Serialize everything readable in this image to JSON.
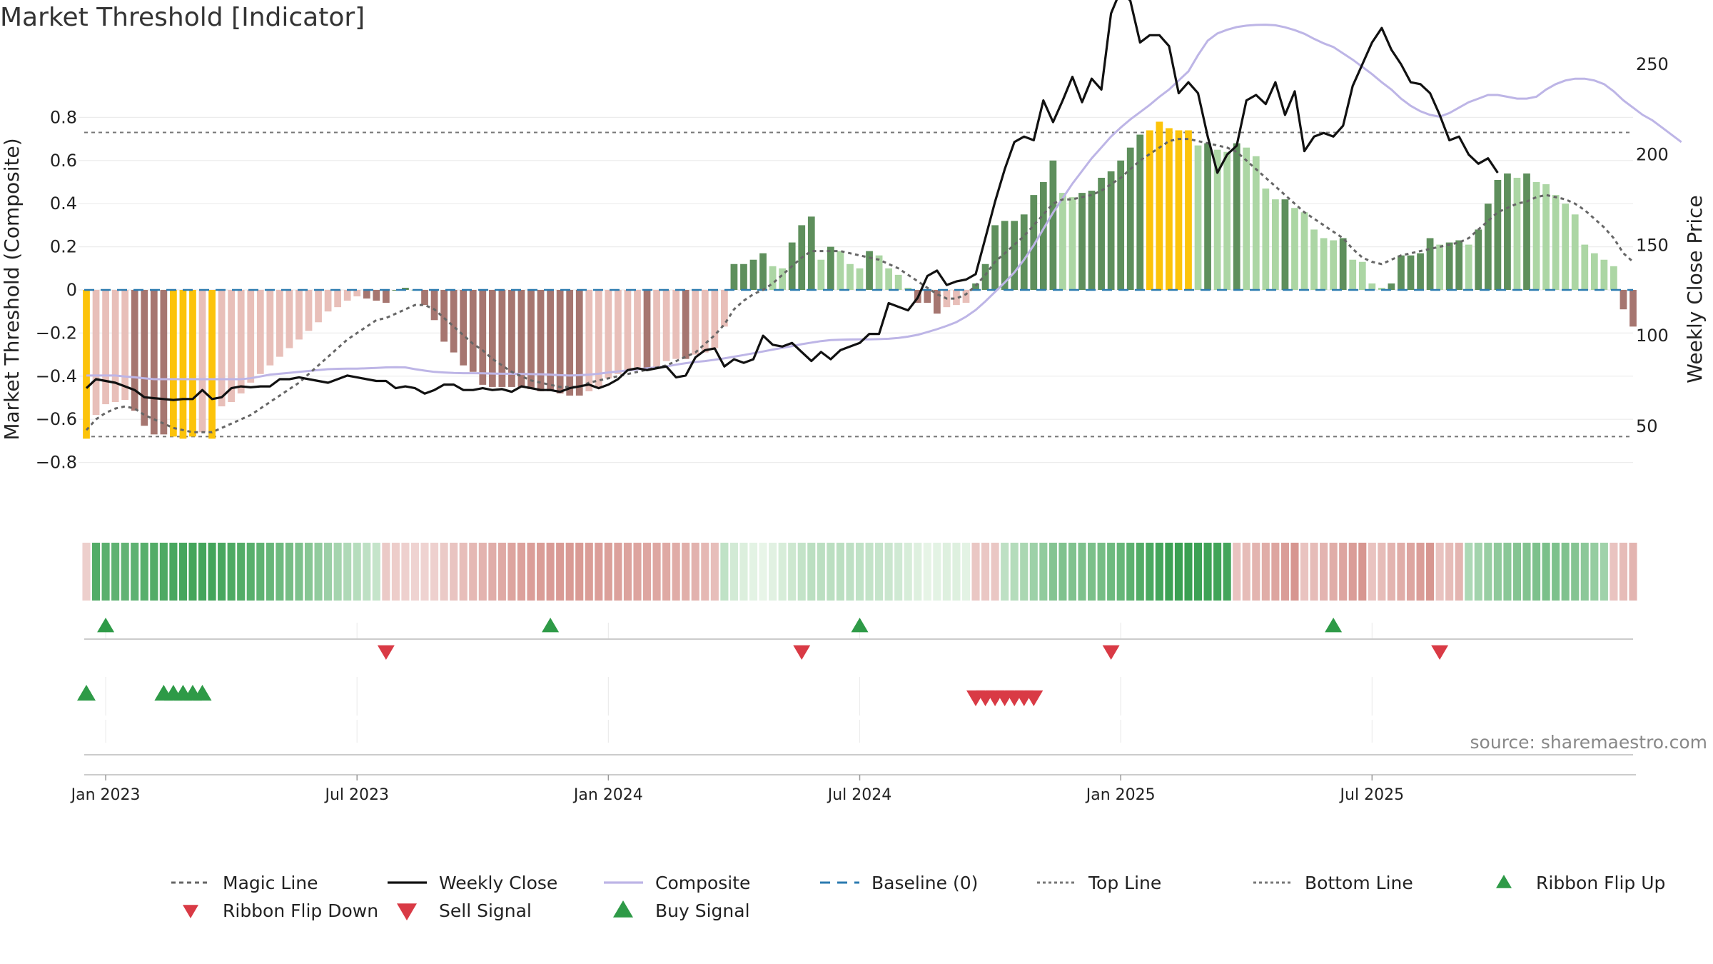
{
  "title": "Market Threshold [Indicator]",
  "source": "source: sharemaestro.com",
  "colors": {
    "bar_neg_light": "#e8bfb9",
    "bar_neg_dark": "#a67670",
    "bar_pos_light": "#acd6a4",
    "bar_pos_dark": "#5e8f5c",
    "bar_extreme": "#fcc30a",
    "magic": "#666666",
    "close": "#111111",
    "composite": "#bdb5e6",
    "baseline": "#2b7bb0",
    "guide": "#777777",
    "buy": "#2e9a47",
    "sell": "#d93a45"
  },
  "chart_data": {
    "type": "bar",
    "title": "Market Threshold [Indicator]",
    "ylabel": "Market Threshold (Composite)",
    "ylabel_right": "Weekly Close Price",
    "ylim": [
      -0.85,
      0.85
    ],
    "ylim_right": [
      50,
      300
    ],
    "yticks": [
      0.8,
      0.6,
      0.4,
      0.2,
      0,
      -0.2,
      -0.4,
      -0.6,
      -0.8
    ],
    "ytick_labels": [
      "0.8",
      "0.6",
      "0.4",
      "0.2",
      "0",
      "−0.2",
      "−0.4",
      "−0.6",
      "−0.8"
    ],
    "yticks_right": [
      300,
      250,
      200,
      150,
      100,
      50
    ],
    "ytick_right_labels": [
      "300",
      "250",
      "200",
      "150",
      "100",
      "50"
    ],
    "x_start": "2022-12-19",
    "x_step_days": 7,
    "xticks": [
      "Jan 2023",
      "Jul 2023",
      "Jan 2024",
      "Jul 2024",
      "Jan 2025",
      "Jul 2025"
    ],
    "top_line": 0.73,
    "bottom_line": -0.68,
    "composite_bars": [
      -0.69,
      -0.58,
      -0.53,
      -0.52,
      -0.51,
      -0.56,
      -0.63,
      -0.67,
      -0.67,
      -0.68,
      -0.69,
      -0.68,
      -0.66,
      -0.69,
      -0.54,
      -0.52,
      -0.48,
      -0.43,
      -0.39,
      -0.35,
      -0.31,
      -0.27,
      -0.23,
      -0.19,
      -0.15,
      -0.1,
      -0.08,
      -0.05,
      -0.03,
      -0.04,
      -0.05,
      -0.06,
      0.0,
      0.01,
      0.0,
      -0.07,
      -0.14,
      -0.24,
      -0.29,
      -0.35,
      -0.38,
      -0.44,
      -0.45,
      -0.45,
      -0.45,
      -0.45,
      -0.46,
      -0.47,
      -0.47,
      -0.48,
      -0.49,
      -0.49,
      -0.47,
      -0.45,
      -0.41,
      -0.39,
      -0.37,
      -0.36,
      -0.37,
      -0.36,
      -0.33,
      -0.32,
      -0.32,
      -0.3,
      -0.29,
      -0.27,
      -0.17,
      0.12,
      0.12,
      0.14,
      0.17,
      0.11,
      0.1,
      0.22,
      0.3,
      0.34,
      0.14,
      0.2,
      0.18,
      0.12,
      0.1,
      0.18,
      0.16,
      0.1,
      0.07,
      0.01,
      -0.06,
      -0.06,
      -0.11,
      -0.08,
      -0.07,
      -0.06,
      0.03,
      0.12,
      0.3,
      0.32,
      0.32,
      0.35,
      0.44,
      0.5,
      0.6,
      0.45,
      0.43,
      0.45,
      0.46,
      0.52,
      0.55,
      0.6,
      0.66,
      0.72,
      0.74,
      0.78,
      0.75,
      0.74,
      0.74,
      0.67,
      0.68,
      0.65,
      0.64,
      0.68,
      0.66,
      0.62,
      0.47,
      0.42,
      0.42,
      0.38,
      0.36,
      0.28,
      0.24,
      0.23,
      0.24,
      0.14,
      0.13,
      0.03,
      0.01,
      0.03,
      0.16,
      0.16,
      0.17,
      0.24,
      0.21,
      0.22,
      0.23,
      0.21,
      0.28,
      0.4,
      0.51,
      0.54,
      0.52,
      0.54,
      0.5,
      0.49,
      0.44,
      0.4,
      0.35,
      0.21,
      0.17,
      0.14,
      0.11,
      -0.09,
      -0.17
    ],
    "magic_line": [
      -0.65,
      -0.6,
      -0.57,
      -0.55,
      -0.54,
      -0.55,
      -0.58,
      -0.6,
      -0.62,
      -0.64,
      -0.65,
      -0.66,
      -0.66,
      -0.66,
      -0.64,
      -0.62,
      -0.6,
      -0.58,
      -0.55,
      -0.52,
      -0.49,
      -0.46,
      -0.43,
      -0.39,
      -0.35,
      -0.31,
      -0.27,
      -0.23,
      -0.2,
      -0.17,
      -0.14,
      -0.13,
      -0.11,
      -0.09,
      -0.07,
      -0.07,
      -0.09,
      -0.13,
      -0.17,
      -0.21,
      -0.25,
      -0.28,
      -0.32,
      -0.35,
      -0.38,
      -0.4,
      -0.42,
      -0.43,
      -0.44,
      -0.45,
      -0.45,
      -0.45,
      -0.43,
      -0.42,
      -0.41,
      -0.4,
      -0.39,
      -0.38,
      -0.37,
      -0.36,
      -0.35,
      -0.33,
      -0.31,
      -0.29,
      -0.25,
      -0.21,
      -0.16,
      -0.09,
      -0.05,
      -0.02,
      0.0,
      0.03,
      0.07,
      0.11,
      0.15,
      0.18,
      0.18,
      0.18,
      0.18,
      0.17,
      0.16,
      0.15,
      0.14,
      0.12,
      0.1,
      0.07,
      0.04,
      0.01,
      -0.02,
      -0.04,
      -0.04,
      -0.02,
      0.02,
      0.07,
      0.13,
      0.17,
      0.21,
      0.25,
      0.3,
      0.35,
      0.4,
      0.42,
      0.42,
      0.43,
      0.44,
      0.46,
      0.49,
      0.52,
      0.56,
      0.6,
      0.63,
      0.66,
      0.69,
      0.7,
      0.7,
      0.69,
      0.68,
      0.67,
      0.66,
      0.64,
      0.6,
      0.56,
      0.52,
      0.48,
      0.44,
      0.4,
      0.36,
      0.33,
      0.3,
      0.27,
      0.24,
      0.19,
      0.15,
      0.13,
      0.12,
      0.14,
      0.16,
      0.17,
      0.18,
      0.19,
      0.2,
      0.21,
      0.22,
      0.24,
      0.28,
      0.32,
      0.36,
      0.38,
      0.4,
      0.41,
      0.43,
      0.44,
      0.43,
      0.42,
      0.4,
      0.37,
      0.33,
      0.29,
      0.24,
      0.17,
      0.13
    ],
    "weekly_close": [
      71,
      76,
      75,
      74,
      72,
      70,
      66,
      65.5,
      65,
      64.5,
      65,
      65,
      70,
      65,
      66,
      71,
      72,
      71.5,
      72,
      72,
      76,
      76,
      77,
      76,
      75,
      74,
      76,
      78,
      77,
      76,
      75,
      75,
      71,
      72,
      71,
      68,
      70,
      73,
      73,
      70,
      70,
      71,
      70,
      70.5,
      69,
      72,
      71,
      70,
      70,
      69,
      71,
      72,
      73,
      71,
      73,
      76,
      81,
      82,
      81,
      82,
      83,
      77,
      78,
      88,
      92,
      93,
      83,
      87,
      85,
      87,
      100,
      95,
      94,
      96,
      91,
      86,
      91,
      87,
      92,
      94,
      96,
      101,
      101,
      118,
      116,
      114,
      121,
      133,
      136,
      128,
      130,
      131,
      134,
      154,
      174,
      192,
      207,
      210,
      208,
      230,
      218,
      230,
      243,
      229,
      242,
      236,
      278,
      291,
      285,
      262,
      266,
      266,
      260,
      234,
      240,
      234,
      210,
      190,
      200,
      205,
      230,
      233,
      228,
      240,
      222,
      235,
      202,
      210,
      212,
      210,
      216,
      238,
      250,
      262,
      270,
      258,
      250,
      240,
      239,
      234,
      222,
      208,
      210,
      200,
      195,
      198,
      190
    ],
    "composite_line": [
      78,
      78,
      78,
      78,
      77.5,
      77,
      76.5,
      76,
      76,
      76,
      76,
      76,
      76,
      76,
      76,
      76,
      76,
      76.5,
      77.5,
      78.5,
      79,
      79.5,
      80,
      80.5,
      81,
      81.5,
      81.7,
      81.8,
      81.8,
      82,
      82.2,
      82.5,
      82.6,
      82.5,
      81.5,
      80.7,
      80,
      79.7,
      79.4,
      79.3,
      79.3,
      79.2,
      79.1,
      79,
      79,
      78.9,
      78.8,
      78.7,
      78.5,
      78.2,
      78,
      78.2,
      78.5,
      79,
      79.7,
      80.2,
      80.8,
      81.4,
      82,
      82.5,
      83,
      84,
      84.8,
      85.5,
      86,
      86.7,
      87.5,
      88.4,
      89.3,
      90.3,
      91.3,
      92.3,
      93.3,
      94.3,
      95.3,
      96.2,
      97,
      97.6,
      97.8,
      97.9,
      98,
      98,
      98.1,
      98.3,
      98.8,
      99.5,
      100.5,
      102,
      103.6,
      105.4,
      107.5,
      110.5,
      114.2,
      119,
      124.2,
      129.4,
      135,
      142,
      150,
      159,
      168,
      176,
      184,
      191,
      198,
      204,
      210,
      215,
      219.5,
      223.5,
      227.5,
      232,
      236,
      241,
      246,
      255,
      263,
      267,
      269,
      270.5,
      271.3,
      271.7,
      271.8,
      271.5,
      270.4,
      268.8,
      266.8,
      264,
      261.5,
      259.5,
      256,
      252.5,
      248.5,
      244.5,
      240,
      236,
      231,
      227,
      224,
      222,
      221,
      223,
      226,
      229,
      231,
      233,
      233,
      232,
      231,
      231,
      232,
      236,
      239,
      241,
      242,
      242,
      241,
      239,
      235,
      230,
      226,
      222,
      219,
      215,
      211,
      207
    ],
    "buy_signal_row1": [
      "2023-01-02",
      "2023-11-20",
      "2024-07-01",
      "2025-06-09"
    ],
    "sell_signal_row1": [
      "2023-07-24",
      "2024-05-20",
      "2024-12-30",
      "2025-08-25"
    ],
    "buy_signal_row2": [
      "2022-12-19",
      "2023-02-13",
      "2023-02-20",
      "2023-02-27",
      "2023-03-06",
      "2023-03-13"
    ],
    "sell_signal_row2": [
      "2024-09-23",
      "2024-09-30",
      "2024-10-07",
      "2024-10-14",
      "2024-10-21",
      "2024-10-28",
      "2024-11-04"
    ]
  },
  "legend": [
    {
      "label": "Magic Line",
      "icon": "dotted-line"
    },
    {
      "label": "Weekly Close",
      "icon": "solid-line"
    },
    {
      "label": "Composite",
      "icon": "solid-line"
    },
    {
      "label": "Baseline (0)",
      "icon": "dashed-line"
    },
    {
      "label": "Top Line",
      "icon": "dotted-line"
    },
    {
      "label": "Bottom Line",
      "icon": "dotted-line"
    },
    {
      "label": "Ribbon Flip Up",
      "icon": "triangle-up"
    },
    {
      "label": "Ribbon Flip Down",
      "icon": "triangle-down"
    },
    {
      "label": "Sell Signal",
      "icon": "triangle-down"
    },
    {
      "label": "Buy Signal",
      "icon": "triangle-up"
    }
  ]
}
